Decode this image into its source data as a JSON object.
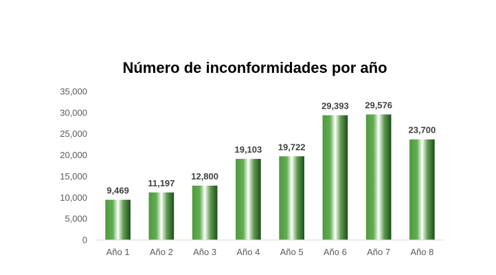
{
  "chart_data": {
    "type": "bar",
    "title": "Número de inconformidades por año",
    "xlabel": "",
    "ylabel": "",
    "categories": [
      "Año 1",
      "Año 2",
      "Año 3",
      "Año 4",
      "Año 5",
      "Año 6",
      "Año 7",
      "Año 8"
    ],
    "values": [
      9469,
      11197,
      12800,
      19103,
      19722,
      29393,
      29576,
      23700
    ],
    "data_labels": [
      "9,469",
      "11,197",
      "12,800",
      "19,103",
      "19,722",
      "29,393",
      "29,576",
      "23,700"
    ],
    "ylim": [
      0,
      35000
    ],
    "yticks": [
      0,
      5000,
      10000,
      15000,
      20000,
      25000,
      30000,
      35000
    ],
    "ytick_labels": [
      "0",
      "5,000",
      "10,000",
      "15,000",
      "20,000",
      "25,000",
      "30,000",
      "35,000"
    ],
    "grid": false,
    "legend": "none",
    "colors": {
      "bar_dark": "#1e4d1e",
      "bar_mid": "#4f9a3f",
      "bar_light": "#ffffff",
      "axis": "#d9d9d9"
    }
  }
}
